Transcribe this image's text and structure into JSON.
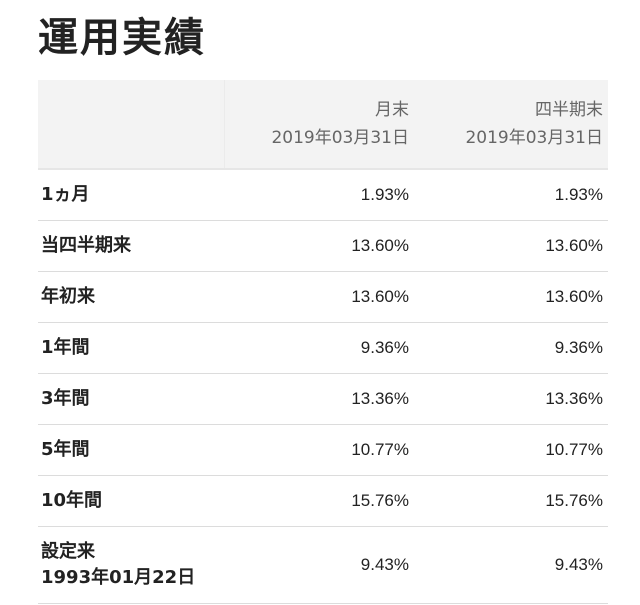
{
  "page": {
    "title": "運用実績"
  },
  "table": {
    "columns": [
      {
        "label": "月末",
        "date": "2019年03月31日"
      },
      {
        "label": "四半期末",
        "date": "2019年03月31日"
      }
    ],
    "rows": [
      {
        "label": "1ヵ月",
        "sublabel": "",
        "values": [
          "1.93%",
          "1.93%"
        ]
      },
      {
        "label": "当四半期来",
        "sublabel": "",
        "values": [
          "13.60%",
          "13.60%"
        ]
      },
      {
        "label": "年初来",
        "sublabel": "",
        "values": [
          "13.60%",
          "13.60%"
        ]
      },
      {
        "label": "1年間",
        "sublabel": "",
        "values": [
          "9.36%",
          "9.36%"
        ]
      },
      {
        "label": "3年間",
        "sublabel": "",
        "values": [
          "13.36%",
          "13.36%"
        ]
      },
      {
        "label": "5年間",
        "sublabel": "",
        "values": [
          "10.77%",
          "10.77%"
        ]
      },
      {
        "label": "10年間",
        "sublabel": "",
        "values": [
          "15.76%",
          "15.76%"
        ]
      },
      {
        "label": "設定来",
        "sublabel": "1993年01月22日",
        "values": [
          "9.43%",
          "9.43%"
        ]
      }
    ]
  }
}
